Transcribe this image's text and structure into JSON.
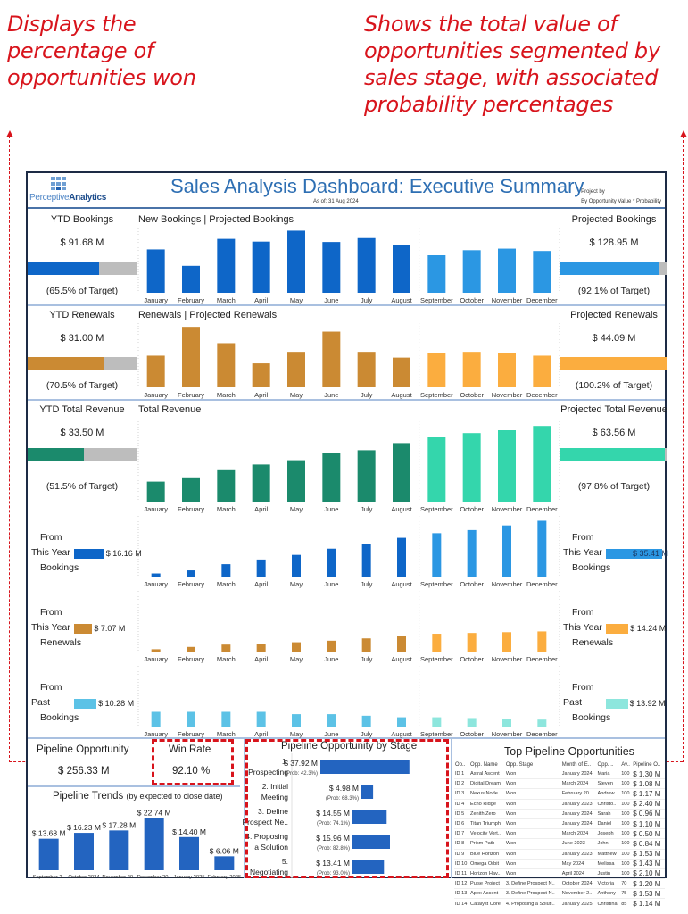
{
  "annotations": {
    "left": "Displays the percentage of opportunities won",
    "right": "Shows the total value of opportunities segmented by sales stage, with associated probability percentages"
  },
  "header": {
    "logo_text_light": "Perceptive",
    "logo_text_bold": "Analytics",
    "title": "Sales Analysis Dashboard: Executive Summary",
    "as_of": "As of: 31 Aug 2024",
    "project_by_label": "Project by",
    "project_by_value": "By Opportunity Value * Probability"
  },
  "colors": {
    "bookings_actual": "#0e66c8",
    "bookings_projected": "#2b97e3",
    "renewals_actual": "#cb8a33",
    "renewals_projected": "#fbad3f",
    "revenue_actual": "#1b8a6c",
    "revenue_projected": "#34d6ac",
    "past_actual": "#5cc2e6",
    "past_projected": "#8de6dd",
    "gauge_bg": "#bdbdbd",
    "pipeline_bar": "#2364c0",
    "annotation": "#d8141c"
  },
  "months": [
    "January",
    "February",
    "March",
    "April",
    "May",
    "June",
    "July",
    "August",
    "September",
    "October",
    "November",
    "December"
  ],
  "rows": {
    "bookings": {
      "ytd_label": "YTD Bookings",
      "ytd_value": "$ 91.68 M",
      "ytd_pct_label": "(65.5% of Target)",
      "ytd_pct": 65.5,
      "chart_title": "New Bookings | Projected Bookings",
      "proj_label": "Projected Bookings",
      "proj_value": "$ 128.95 M",
      "proj_pct_label": "(92.1% of Target)",
      "proj_pct": 92.1
    },
    "renewals": {
      "ytd_label": "YTD Renewals",
      "ytd_value": "$ 31.00 M",
      "ytd_pct_label": "(70.5% of Target)",
      "ytd_pct": 70.5,
      "chart_title": "Renewals | Projected Renewals",
      "proj_label": "Projected Renewals",
      "proj_value": "$ 44.09 M",
      "proj_pct_label": "(100.2% of Target)",
      "proj_pct": 100.2
    },
    "revenue": {
      "ytd_label": "YTD Total Revenue",
      "ytd_value": "$ 33.50 M",
      "ytd_pct_label": "(51.5% of Target)",
      "ytd_pct": 51.5,
      "chart_title": "Total Revenue",
      "proj_label": "Projected Total Revenue",
      "proj_value": "$ 63.56 M",
      "proj_pct_label": "(97.8% of Target)",
      "proj_pct": 97.8
    },
    "src_bookings": {
      "left_label": [
        "From",
        "This Year",
        "Bookings"
      ],
      "left_value": "$ 16.16 M",
      "right_label": [
        "From",
        "This Year",
        "Bookings"
      ],
      "right_value": "$ 35.41 M"
    },
    "src_renewals": {
      "left_label": [
        "From",
        "This Year",
        "Renewals"
      ],
      "left_value": "$ 7.07 M",
      "right_label": [
        "From",
        "This Year",
        "Renewals"
      ],
      "right_value": "$ 14.24 M"
    },
    "src_past": {
      "left_label": [
        "From",
        "Past",
        "Bookings"
      ],
      "left_value": "$ 10.28 M",
      "right_label": [
        "From",
        "Past",
        "Bookings"
      ],
      "right_value": "$ 13.92 M"
    }
  },
  "chart_data": [
    {
      "type": "bar",
      "title": "New Bookings | Projected Bookings",
      "id": "bookings",
      "categories": [
        "January",
        "February",
        "March",
        "April",
        "May",
        "June",
        "July",
        "August",
        "September",
        "October",
        "November",
        "December"
      ],
      "values": [
        11.1,
        6.9,
        13.8,
        13.1,
        15.9,
        13.0,
        14.0,
        12.3,
        9.6,
        10.9,
        11.3,
        10.7
      ],
      "projected_from_index": 8,
      "ylim": [
        0,
        16
      ],
      "units": "relative ($M, estimated)"
    },
    {
      "type": "bar",
      "title": "Renewals | Projected Renewals",
      "id": "renewals",
      "categories": [
        "January",
        "February",
        "March",
        "April",
        "May",
        "June",
        "July",
        "August",
        "September",
        "October",
        "November",
        "December"
      ],
      "values": [
        3.3,
        6.3,
        4.6,
        2.5,
        3.7,
        5.8,
        3.7,
        3.1,
        3.6,
        3.7,
        3.6,
        3.3
      ],
      "projected_from_index": 8,
      "ylim": [
        0,
        6.5
      ],
      "units": "relative ($M, estimated)"
    },
    {
      "type": "bar",
      "title": "Total Revenue",
      "id": "revenue",
      "categories": [
        "January",
        "February",
        "March",
        "April",
        "May",
        "June",
        "July",
        "August",
        "September",
        "October",
        "November",
        "December"
      ],
      "values": [
        1.4,
        1.7,
        2.2,
        2.6,
        2.9,
        3.4,
        3.6,
        4.1,
        4.5,
        4.8,
        5.0,
        5.3
      ],
      "projected_from_index": 8,
      "ylim": [
        0,
        5.5
      ],
      "units": "relative ($M, estimated)"
    },
    {
      "type": "bar",
      "title": "From This Year Bookings",
      "id": "src_bookings",
      "categories": [
        "January",
        "February",
        "March",
        "April",
        "May",
        "June",
        "July",
        "August",
        "September",
        "October",
        "November",
        "December"
      ],
      "values": [
        0.2,
        0.4,
        0.8,
        1.1,
        1.4,
        1.8,
        2.1,
        2.5,
        2.8,
        3.0,
        3.3,
        3.6
      ],
      "projected_from_index": 8,
      "ylim": [
        0,
        3.8
      ],
      "units": "relative ($M, estimated)"
    },
    {
      "type": "bar",
      "title": "From This Year Renewals",
      "id": "src_renewals",
      "categories": [
        "January",
        "February",
        "March",
        "April",
        "May",
        "June",
        "July",
        "August",
        "September",
        "October",
        "November",
        "December"
      ],
      "values": [
        0.15,
        0.3,
        0.45,
        0.5,
        0.6,
        0.7,
        0.85,
        1.0,
        1.15,
        1.2,
        1.25,
        1.3
      ],
      "projected_from_index": 8,
      "ylim": [
        0,
        3.8
      ],
      "units": "relative ($M, estimated)"
    },
    {
      "type": "bar",
      "title": "From Past Bookings",
      "id": "src_past",
      "categories": [
        "January",
        "February",
        "March",
        "April",
        "May",
        "June",
        "July",
        "August",
        "September",
        "October",
        "November",
        "December"
      ],
      "values": [
        0.95,
        0.95,
        0.95,
        0.95,
        0.8,
        0.8,
        0.7,
        0.6,
        0.6,
        0.55,
        0.5,
        0.45
      ],
      "projected_from_index": 8,
      "ylim": [
        0,
        3.8
      ],
      "units": "relative ($M, estimated)"
    },
    {
      "type": "bar",
      "title": "Pipeline Trends",
      "subtitle": "(by expected to close date)",
      "id": "pipeline_trends",
      "categories": [
        "September 2..",
        "October 2024",
        "November 20..",
        "December 20..",
        "January 2025",
        "February 2025"
      ],
      "values": [
        13.68,
        16.23,
        17.28,
        22.74,
        14.4,
        6.06
      ],
      "labels": [
        "$ 13.68 M",
        "$ 16.23 M",
        "$ 17.28 M",
        "$ 22.74 M",
        "$ 14.40 M",
        "$ 6.06 M"
      ],
      "ylim": [
        0,
        24
      ],
      "units": "$M"
    },
    {
      "type": "bar",
      "orientation": "horizontal",
      "title": "Pipeline Opportunity by Stage",
      "id": "pipeline_stage",
      "categories": [
        "1. Prospecting",
        "2. Initial Meeting",
        "3. Define Prospect Ne..",
        "4. Proposing a Solution",
        "5. Negotiating"
      ],
      "category_lines": [
        [
          "1.",
          "Prospecting"
        ],
        [
          "2. Initial",
          "Meeting"
        ],
        [
          "3. Define",
          "Prospect Ne.."
        ],
        [
          "4. Proposing",
          "a Solution"
        ],
        [
          "5.",
          "Negotiating"
        ]
      ],
      "values": [
        37.92,
        4.98,
        14.55,
        15.96,
        13.41
      ],
      "labels": [
        "$ 37.92 M",
        "$ 4.98 M",
        "$ 14.55 M",
        "$ 15.96 M",
        "$ 13.41 M"
      ],
      "probabilities": [
        "(Prob: 42.3%)",
        "(Prob: 68.3%)",
        "(Prob: 74.1%)",
        "(Prob: 82.8%)",
        "(Prob: 93.0%)"
      ],
      "xlim": [
        0,
        38
      ],
      "units": "$M"
    }
  ],
  "pipeline": {
    "opportunity_label": "Pipeline Opportunity",
    "opportunity_value": "$ 256.33 M",
    "win_rate_label": "Win Rate",
    "win_rate_value": "92.10 %",
    "trends_title": "Pipeline Trends",
    "trends_subtitle": "(by expected to close date)",
    "stage_title": "Pipeline Opportunity by Stage"
  },
  "top_table": {
    "title": "Top Pipeline Opportunities",
    "columns": [
      "Op..",
      "Opp. Name",
      "Opp. Stage",
      "Month of E..",
      "Opp. ..",
      "Av..",
      "Pipeline O.."
    ],
    "rows": [
      [
        "ID 1",
        "Astral Ascent",
        "Won",
        "January 2024",
        "Maria",
        "100",
        "$ 1.30 M"
      ],
      [
        "ID 2",
        "Digital Dream",
        "Won",
        "March 2024",
        "Steven",
        "100",
        "$ 1.08 M"
      ],
      [
        "ID 3",
        "Nexus Node",
        "Won",
        "February 20..",
        "Andrew",
        "100",
        "$ 1.17 M"
      ],
      [
        "ID 4",
        "Echo Ridge",
        "Won",
        "January 2023",
        "Christo..",
        "100",
        "$ 2.40 M"
      ],
      [
        "ID 5",
        "Zenith Zero",
        "Won",
        "January 2024",
        "Sarah",
        "100",
        "$ 0.96 M"
      ],
      [
        "ID 6",
        "Titan Triumph",
        "Won",
        "January 2024",
        "Daniel",
        "100",
        "$ 1.10 M"
      ],
      [
        "ID 7",
        "Velocity Vort..",
        "Won",
        "March 2024",
        "Joseph",
        "100",
        "$ 0.50 M"
      ],
      [
        "ID 8",
        "Prism Path",
        "Won",
        "June 2023",
        "John",
        "100",
        "$ 0.84 M"
      ],
      [
        "ID 9",
        "Blue Horizon",
        "Won",
        "January 2023",
        "Matthew",
        "100",
        "$ 1.53 M"
      ],
      [
        "ID 10",
        "Omega Orbit",
        "Won",
        "May 2024",
        "Melissa",
        "100",
        "$ 1.43 M"
      ],
      [
        "ID 11",
        "Horizon Hav..",
        "Won",
        "April 2024",
        "Justin",
        "100",
        "$ 2.10 M"
      ],
      [
        "ID 12",
        "Pulse Project",
        "3. Define Prospect N..",
        "October 2024",
        "Victoria",
        "70",
        "$ 1.20 M"
      ],
      [
        "ID 13",
        "Apex Ascent",
        "3. Define Prospect N..",
        "November 2..",
        "Anthony",
        "75",
        "$ 1.53 M"
      ],
      [
        "ID 14",
        "Catalyst Core",
        "4. Proposing a Soluti..",
        "January 2025",
        "Christina",
        "85",
        "$ 1.14 M"
      ]
    ]
  }
}
